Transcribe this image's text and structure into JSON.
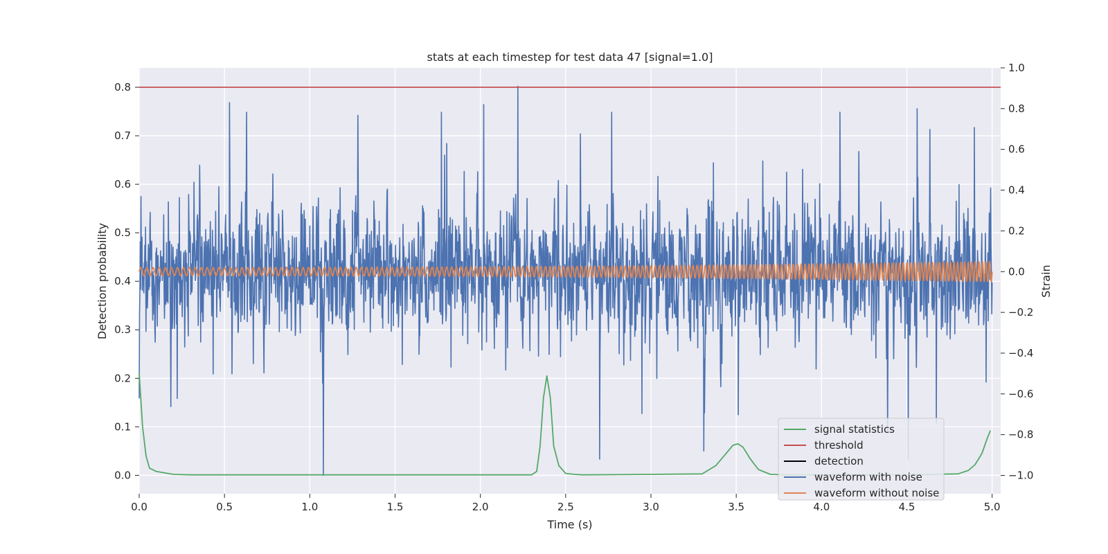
{
  "chart_data": {
    "type": "line",
    "title": "stats at each timestep for test data 47 [signal=1.0]",
    "xlabel": "Time (s)",
    "ylabel": "Detection probability",
    "y2label": "Strain",
    "xlim": [
      0.0,
      5.05
    ],
    "ylim": [
      -0.038,
      0.84
    ],
    "y2lim": [
      -1.09,
      1.0
    ],
    "grid": true,
    "legend_position": "lower-right",
    "x_ticks": [
      "0.0",
      "0.5",
      "1.0",
      "1.5",
      "2.0",
      "2.5",
      "3.0",
      "3.5",
      "4.0",
      "4.5",
      "5.0"
    ],
    "x_tick_values": [
      0.0,
      0.5,
      1.0,
      1.5,
      2.0,
      2.5,
      3.0,
      3.5,
      4.0,
      4.5,
      5.0
    ],
    "y_ticks": [
      "0.0",
      "0.1",
      "0.2",
      "0.3",
      "0.4",
      "0.5",
      "0.6",
      "0.7",
      "0.8"
    ],
    "y_tick_values": [
      0.0,
      0.1,
      0.2,
      0.3,
      0.4,
      0.5,
      0.6,
      0.7,
      0.8
    ],
    "y2_ticks": [
      "−1.0",
      "−0.8",
      "−0.6",
      "−0.4",
      "−0.2",
      "0.0",
      "0.2",
      "0.4",
      "0.6",
      "0.8",
      "1.0"
    ],
    "y2_tick_values": [
      -1.0,
      -0.8,
      -0.6,
      -0.4,
      -0.2,
      0.0,
      0.2,
      0.4,
      0.6,
      0.8,
      1.0
    ],
    "series": [
      {
        "name": "signal statistics",
        "axis": "left",
        "color": "#55a868",
        "x": [
          0.0,
          0.02,
          0.04,
          0.06,
          0.1,
          0.15,
          0.2,
          0.3,
          0.5,
          1.0,
          1.5,
          2.0,
          2.3,
          2.33,
          2.35,
          2.37,
          2.39,
          2.41,
          2.43,
          2.46,
          2.5,
          2.55,
          2.6,
          3.0,
          3.3,
          3.38,
          3.44,
          3.48,
          3.51,
          3.54,
          3.58,
          3.63,
          3.7,
          3.8,
          4.5,
          4.8,
          4.86,
          4.9,
          4.94,
          4.97,
          4.99
        ],
        "y": [
          0.21,
          0.1,
          0.04,
          0.015,
          0.008,
          0.005,
          0.002,
          0.001,
          0.001,
          0.001,
          0.001,
          0.001,
          0.001,
          0.008,
          0.06,
          0.16,
          0.205,
          0.16,
          0.06,
          0.02,
          0.004,
          0.002,
          0.001,
          0.002,
          0.003,
          0.02,
          0.045,
          0.062,
          0.065,
          0.058,
          0.035,
          0.012,
          0.002,
          0.001,
          0.001,
          0.003,
          0.01,
          0.022,
          0.045,
          0.075,
          0.092
        ]
      },
      {
        "name": "threshold",
        "axis": "left",
        "color": "#c44e52",
        "x": [
          0.0,
          5.05
        ],
        "y": [
          0.8,
          0.8
        ]
      },
      {
        "name": "detection",
        "axis": "left",
        "color": "#000000",
        "x": [],
        "y": []
      },
      {
        "name": "waveform with noise",
        "axis": "right",
        "color": "#4c72b0",
        "x_range": [
          0.0,
          5.0
        ],
        "y_range": [
          -1.0,
          0.91
        ],
        "noise_std": 0.17,
        "peaks": [
          {
            "x": 0.53,
            "y": 0.83
          },
          {
            "x": 1.08,
            "y": -1.0
          },
          {
            "x": 2.02,
            "y": 0.82
          },
          {
            "x": 2.22,
            "y": 0.91
          },
          {
            "x": 3.31,
            "y": -0.88
          },
          {
            "x": 4.56,
            "y": 0.8
          }
        ]
      },
      {
        "name": "waveform without noise",
        "axis": "right",
        "color": "#dd8452",
        "x_range": [
          0.0,
          5.0
        ],
        "amplitude_start": 0.02,
        "amplitude_end": 0.05,
        "cycles": 190
      }
    ]
  }
}
